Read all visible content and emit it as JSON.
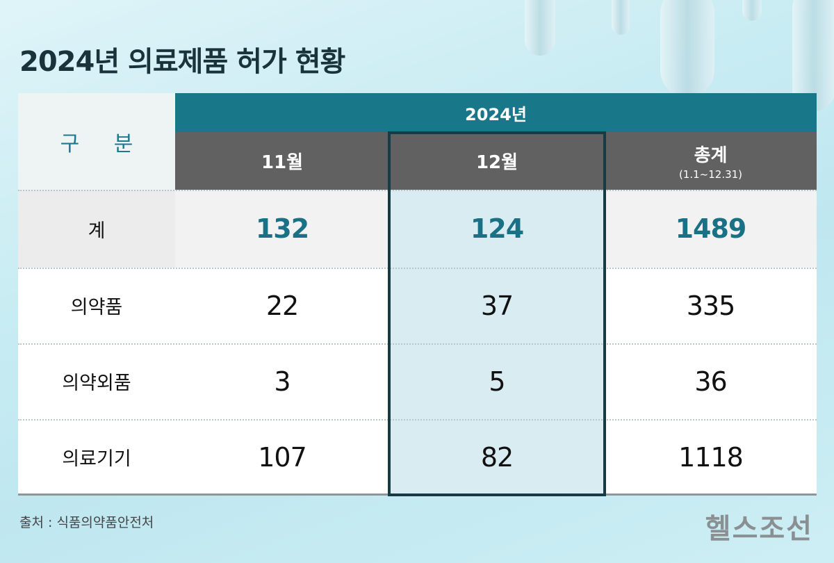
{
  "title": "2024년 의료제품 허가 현황",
  "chart_data": {
    "type": "table",
    "header": {
      "corner": "구 분",
      "year": "2024년",
      "columns": [
        {
          "label": "11월",
          "sub": ""
        },
        {
          "label": "12월",
          "sub": ""
        },
        {
          "label": "총계",
          "sub": "(1.1~12.31)"
        }
      ]
    },
    "rows": [
      {
        "label": "계",
        "values": [
          "132",
          "124",
          "1489"
        ],
        "emphasis": true
      },
      {
        "label": "의약품",
        "values": [
          "22",
          "37",
          "335"
        ]
      },
      {
        "label": "의약외품",
        "values": [
          "3",
          "5",
          "36"
        ]
      },
      {
        "label": "의료기기",
        "values": [
          "107",
          "82",
          "1118"
        ]
      }
    ],
    "highlight_column": "12월"
  },
  "colors": {
    "header_year": "#187889",
    "header_month": "#616161",
    "total_value": "#1a7186",
    "highlight_fill": "#d9ecf1",
    "highlight_border": "#163b45"
  },
  "source": "출처 : 식품의약품안전처",
  "logo": "헬스조선"
}
